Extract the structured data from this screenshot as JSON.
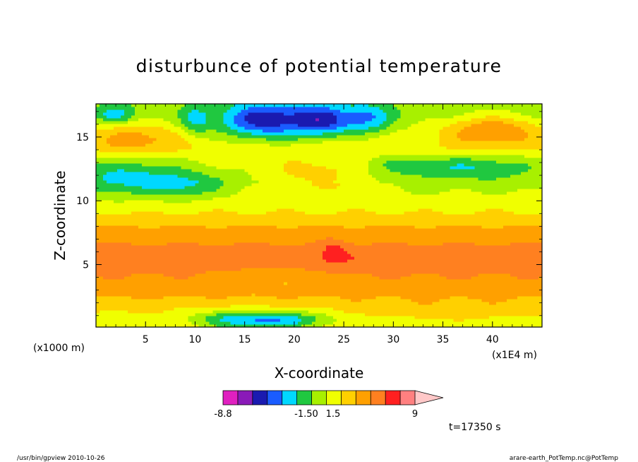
{
  "chart_data": {
    "type": "heatmap",
    "title": "disturbunce of potential temperature",
    "xlabel": "X-coordinate",
    "ylabel": "Z-coordinate",
    "x_unit_left": "(x1000 m)",
    "x_unit_right": "(x1E4 m)",
    "xlim": [
      0,
      45
    ],
    "ylim": [
      0.1,
      17.6
    ],
    "x_ticks": [
      "5",
      "10",
      "15",
      "20",
      "25",
      "30",
      "35",
      "40"
    ],
    "x_tick_values": [
      5,
      10,
      15,
      20,
      25,
      30,
      35,
      40
    ],
    "y_ticks": [
      "5",
      "10",
      "15"
    ],
    "y_tick_values": [
      5,
      10,
      15
    ],
    "colorbar": {
      "labels": [
        "-8.8",
        "-1.50",
        "1.5",
        "9"
      ],
      "label_values": [
        -8.8,
        -1.5,
        1.5,
        9
      ],
      "range": [
        -12,
        12
      ],
      "colors": [
        "#e020c0",
        "#8a1ab8",
        "#1a1ab0",
        "#1a5cff",
        "#00d8ff",
        "#20c840",
        "#a8f000",
        "#f0ff00",
        "#ffd000",
        "#ffa000",
        "#ff8020",
        "#ff2020",
        "#ff8080",
        "#ffc8c8"
      ]
    },
    "bands": [
      {
        "z_top": 17.6,
        "z_bottom": 15.5,
        "mean": -1.0
      },
      {
        "z_top": 15.5,
        "z_bottom": 13.0,
        "mean": 1.5
      },
      {
        "z_top": 13.0,
        "z_bottom": 10.0,
        "mean": -0.8
      },
      {
        "z_top": 10.0,
        "z_bottom": 8.5,
        "mean": 1.5
      },
      {
        "z_top": 8.5,
        "z_bottom": 7.5,
        "mean": 3.5
      },
      {
        "z_top": 7.5,
        "z_bottom": 3.5,
        "mean": 6.5
      },
      {
        "z_top": 3.5,
        "z_bottom": 1.5,
        "mean": 3.5
      },
      {
        "z_top": 1.5,
        "z_bottom": 0.1,
        "mean": 1.0
      }
    ],
    "annotation": "t=17350 s"
  },
  "footer": {
    "left": "/usr/bin/gpview   2010-10-26",
    "right": "arare-earth_PotTemp.nc@PotTemp"
  },
  "colors": {
    "grid": "#000000",
    "background": "#ffffff"
  }
}
